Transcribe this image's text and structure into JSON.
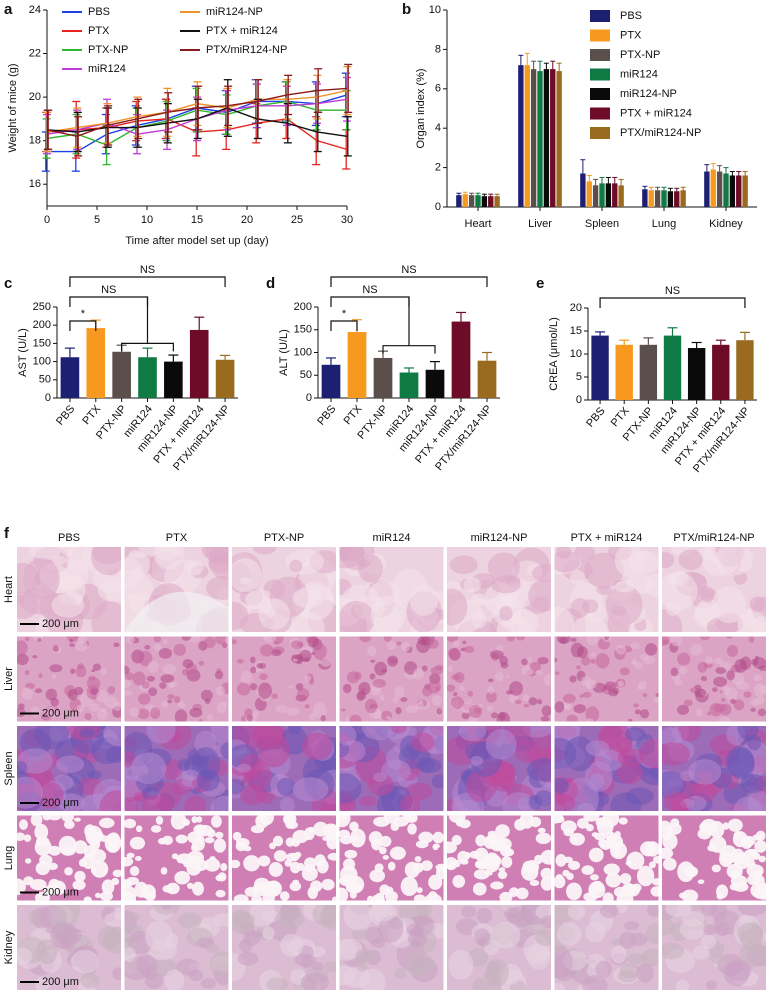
{
  "chart_data": [
    {
      "panel": "a",
      "type": "line",
      "x": [
        0,
        3,
        6,
        9,
        12,
        15,
        18,
        21,
        24,
        27,
        30
      ],
      "xlim": [
        0,
        30
      ],
      "xticks": [
        0,
        5,
        10,
        15,
        20,
        25,
        30
      ],
      "ylim": [
        15,
        24
      ],
      "yticks": [
        16,
        18,
        20,
        22,
        24
      ],
      "x_label": "Time after model set up (day)",
      "y_label": "Weight of mice (g)",
      "series": [
        {
          "name": "PBS",
          "color": "#1f3fe6",
          "values": [
            17.5,
            17.5,
            18.3,
            18.7,
            19.0,
            19.5,
            19.3,
            19.8,
            19.8,
            19.7,
            20.1
          ],
          "errors": [
            0.9,
            0.9,
            0.9,
            0.9,
            0.9,
            1.0,
            1.0,
            1.0,
            0.9,
            1.0,
            1.0
          ]
        },
        {
          "name": "PTX",
          "color": "#e8231f",
          "values": [
            18.4,
            18.5,
            18.6,
            18.9,
            19.0,
            18.4,
            18.5,
            18.8,
            19.0,
            18.0,
            17.6
          ],
          "errors": [
            0.9,
            1.3,
            0.9,
            0.9,
            0.9,
            1.1,
            0.9,
            0.9,
            0.9,
            1.1,
            0.9
          ]
        },
        {
          "name": "PTX-NP",
          "color": "#2fb52f",
          "values": [
            18.1,
            18.3,
            17.8,
            18.6,
            18.9,
            19.4,
            19.2,
            19.6,
            19.8,
            19.4,
            19.4
          ],
          "errors": [
            0.9,
            0.9,
            0.9,
            0.9,
            0.9,
            1.0,
            0.9,
            1.0,
            0.9,
            0.9,
            0.9
          ]
        },
        {
          "name": "miR124",
          "color": "#c03ad8",
          "values": [
            18.3,
            18.5,
            18.8,
            18.3,
            18.5,
            19.0,
            19.4,
            19.6,
            19.6,
            19.7,
            19.9
          ],
          "errors": [
            0.9,
            0.9,
            1.1,
            0.9,
            0.9,
            1.0,
            0.9,
            1.0,
            0.9,
            0.9,
            1.0
          ]
        },
        {
          "name": "miR124-NP",
          "color": "#f0922b",
          "values": [
            18.4,
            18.6,
            18.8,
            19.1,
            19.3,
            19.7,
            19.5,
            19.9,
            19.9,
            20.0,
            20.3
          ],
          "errors": [
            0.9,
            0.9,
            0.9,
            0.9,
            1.1,
            1.0,
            0.9,
            0.9,
            0.9,
            1.0,
            1.1
          ]
        },
        {
          "name": "PTX + miR124",
          "color": "#111111",
          "values": [
            18.5,
            18.4,
            18.6,
            18.6,
            18.8,
            19.0,
            19.5,
            19.0,
            18.8,
            18.4,
            18.2
          ],
          "errors": [
            0.9,
            0.9,
            0.9,
            0.9,
            0.9,
            0.9,
            1.3,
            0.9,
            0.9,
            0.9,
            0.9
          ]
        },
        {
          "name": "PTX/miR124-NP",
          "color": "#8b1a1a",
          "values": [
            18.5,
            18.2,
            18.7,
            19.0,
            19.3,
            19.5,
            19.6,
            19.8,
            20.1,
            20.3,
            20.4
          ],
          "errors": [
            0.9,
            0.9,
            0.9,
            0.9,
            0.9,
            1.0,
            0.9,
            1.0,
            0.9,
            1.0,
            1.1
          ]
        }
      ]
    },
    {
      "panel": "b",
      "type": "grouped_bar",
      "categories": [
        "Heart",
        "Liver",
        "Spleen",
        "Lung",
        "Kidney"
      ],
      "ylim": [
        0,
        10
      ],
      "yticks": [
        0,
        2,
        4,
        6,
        8,
        10
      ],
      "y_label": "Organ index (%)",
      "series": [
        {
          "name": "PBS",
          "color": "#1d1f73",
          "values": [
            0.6,
            7.2,
            1.7,
            0.9,
            1.8
          ],
          "errors": [
            0.1,
            0.5,
            0.7,
            0.15,
            0.35
          ]
        },
        {
          "name": "PTX",
          "color": "#f7991e",
          "values": [
            0.65,
            7.2,
            1.3,
            0.85,
            1.9
          ],
          "errors": [
            0.1,
            0.6,
            0.3,
            0.15,
            0.3
          ]
        },
        {
          "name": "PTX-NP",
          "color": "#5a4f4a",
          "values": [
            0.6,
            7.0,
            1.1,
            0.85,
            1.8
          ],
          "errors": [
            0.1,
            0.4,
            0.3,
            0.15,
            0.3
          ]
        },
        {
          "name": "miR124",
          "color": "#107a45",
          "values": [
            0.6,
            6.9,
            1.2,
            0.85,
            1.7
          ],
          "errors": [
            0.1,
            0.5,
            0.3,
            0.15,
            0.3
          ]
        },
        {
          "name": "miR124-NP",
          "color": "#0a0a0a",
          "values": [
            0.55,
            7.0,
            1.2,
            0.8,
            1.6
          ],
          "errors": [
            0.1,
            0.3,
            0.3,
            0.15,
            0.2
          ]
        },
        {
          "name": "PTX + miR124",
          "color": "#6d0b28",
          "values": [
            0.55,
            7.0,
            1.2,
            0.8,
            1.6
          ],
          "errors": [
            0.1,
            0.4,
            0.3,
            0.15,
            0.2
          ]
        },
        {
          "name": "PTX/miR124-NP",
          "color": "#9a6a1f",
          "values": [
            0.55,
            6.9,
            1.1,
            0.85,
            1.6
          ],
          "errors": [
            0.1,
            0.4,
            0.3,
            0.15,
            0.2
          ]
        }
      ]
    },
    {
      "panel": "c",
      "type": "bar",
      "categories": [
        "PBS",
        "PTX",
        "PTX-NP",
        "miR124",
        "miR124-NP",
        "PTX + miR124",
        "PTX/miR124-NP"
      ],
      "colors": [
        "#1d1f73",
        "#f7991e",
        "#5a4f4a",
        "#107a45",
        "#0a0a0a",
        "#6d0b28",
        "#9a6a1f"
      ],
      "values": [
        112,
        192,
        127,
        112,
        100,
        187,
        105
      ],
      "errors": [
        25,
        22,
        18,
        25,
        18,
        35,
        12
      ],
      "ylim": [
        0,
        250
      ],
      "yticks": [
        0,
        50,
        100,
        150,
        200,
        250
      ],
      "y_label": "AST (U/L)",
      "annotations": [
        "*",
        "NS",
        "NS"
      ]
    },
    {
      "panel": "d",
      "type": "bar",
      "categories": [
        "PBS",
        "PTX",
        "PTX-NP",
        "miR124",
        "miR124-NP",
        "PTX + miR124",
        "PTX/miR124-NP"
      ],
      "colors": [
        "#1d1f73",
        "#f7991e",
        "#5a4f4a",
        "#107a45",
        "#0a0a0a",
        "#6d0b28",
        "#9a6a1f"
      ],
      "values": [
        73,
        145,
        88,
        56,
        62,
        168,
        82
      ],
      "errors": [
        15,
        27,
        15,
        10,
        18,
        20,
        18
      ],
      "ylim": [
        0,
        200
      ],
      "yticks": [
        0,
        50,
        100,
        150,
        200
      ],
      "y_label": "ALT (U/L)",
      "annotations": [
        "*",
        "NS",
        "NS"
      ]
    },
    {
      "panel": "e",
      "type": "bar",
      "categories": [
        "PBS",
        "PTX",
        "PTX-NP",
        "miR124",
        "miR124-NP",
        "PTX + miR124",
        "PTX/miR124-NP"
      ],
      "colors": [
        "#1d1f73",
        "#f7991e",
        "#5a4f4a",
        "#107a45",
        "#0a0a0a",
        "#6d0b28",
        "#9a6a1f"
      ],
      "values": [
        14,
        12,
        12,
        14,
        11.3,
        12,
        13
      ],
      "errors": [
        0.8,
        1,
        1.5,
        1.7,
        1.2,
        1,
        1.7
      ],
      "ylim": [
        0,
        20
      ],
      "yticks": [
        0,
        5,
        10,
        15,
        20
      ],
      "y_label": "CREA (μmol/L)",
      "annotations": [
        "NS"
      ]
    }
  ],
  "histology": {
    "panel": "f",
    "columns": [
      "PBS",
      "PTX",
      "PTX-NP",
      "miR124",
      "miR124-NP",
      "PTX + miR124",
      "PTX/miR124-NP"
    ],
    "rows": [
      "Heart",
      "Liver",
      "Spleen",
      "Lung",
      "Kidney"
    ],
    "scale_bar": "200 μm"
  }
}
